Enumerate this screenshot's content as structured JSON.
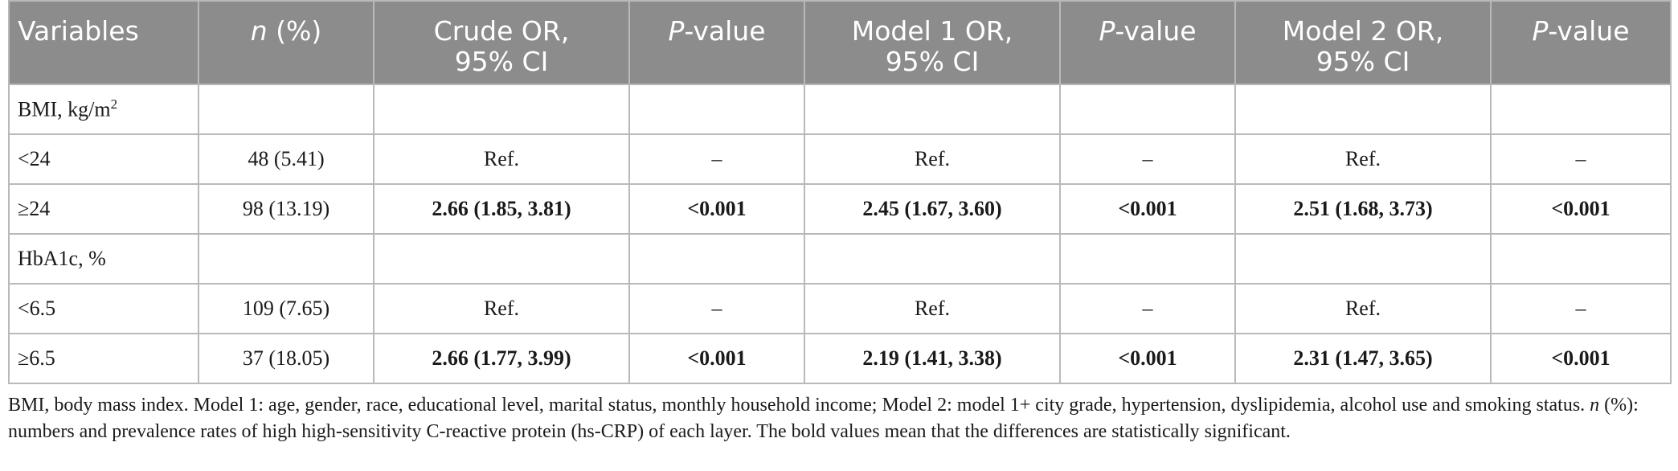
{
  "header": {
    "col1": "Variables",
    "col2_italic": "n",
    "col2_rest": " (%)",
    "col3_line1": "Crude OR,",
    "col3_line2": "95% CI",
    "pval_italic": "P",
    "pval_rest": "-value",
    "col5_line1": "Model 1 OR,",
    "col5_line2": "95% CI",
    "col7_line1": "Model 2 OR,",
    "col7_line2": "95% CI"
  },
  "rows": [
    {
      "label": "BMI, kg/m",
      "sup": "2",
      "n": "",
      "crude": "",
      "p1": "",
      "m1": "",
      "p2": "",
      "m2": "",
      "p3": ""
    },
    {
      "label": "<24",
      "sup": "",
      "n": "48 (5.41)",
      "crude": "Ref.",
      "p1": "–",
      "m1": "Ref.",
      "p2": "–",
      "m2": "Ref.",
      "p3": "–"
    },
    {
      "label": "≥24",
      "sup": "",
      "n": "98 (13.19)",
      "crude": "2.66 (1.85, 3.81)",
      "p1": "<0.001",
      "m1": "2.45 (1.67, 3.60)",
      "p2": "<0.001",
      "m2": "2.51 (1.68, 3.73)",
      "p3": "<0.001"
    },
    {
      "label": "HbA1c, %",
      "sup": "",
      "n": "",
      "crude": "",
      "p1": "",
      "m1": "",
      "p2": "",
      "m2": "",
      "p3": ""
    },
    {
      "label": "<6.5",
      "sup": "",
      "n": "109 (7.65)",
      "crude": "Ref.",
      "p1": "–",
      "m1": "Ref.",
      "p2": "–",
      "m2": "Ref.",
      "p3": "–"
    },
    {
      "label": "≥6.5",
      "sup": "",
      "n": "37 (18.05)",
      "crude": "2.66 (1.77, 3.99)",
      "p1": "<0.001",
      "m1": "2.19 (1.41, 3.38)",
      "p2": "<0.001",
      "m2": "2.31 (1.47, 3.65)",
      "p3": "<0.001"
    }
  ],
  "footnote": {
    "part1": "BMI, body mass index. Model 1: age, gender, race, educational level, marital status, monthly household income; Model 2: model 1+ city grade, hypertension, dyslipidemia, alcohol use and smoking status. ",
    "n_italic": "n",
    "part2": " (%): numbers and prevalence rates of high high-sensitivity C-reactive protein (hs-CRP) of each layer. The bold values mean that the differences are statistically significant."
  }
}
